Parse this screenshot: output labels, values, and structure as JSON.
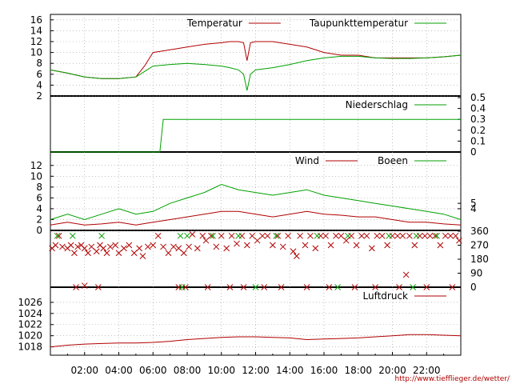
{
  "credit_url": "http://www.tiefflieger.de/wetter/",
  "x_axis": {
    "tick_labels": [
      "02:00",
      "04:00",
      "06:00",
      "08:00",
      "10:00",
      "12:00",
      "14:00",
      "16:00",
      "18:00",
      "20:00",
      "22:00"
    ],
    "range_hours": [
      0,
      24
    ]
  },
  "colors": {
    "red": "#b00000",
    "green": "#00a000",
    "grid": "#999999",
    "frame": "#000000"
  },
  "chart_data": [
    {
      "type": "line",
      "y_ticks": [
        2,
        4,
        6,
        8,
        10,
        12,
        14,
        16
      ],
      "ylim": [
        2,
        17
      ],
      "grid": true,
      "legend_position": "top-right",
      "x": [
        0,
        1,
        2,
        3,
        4,
        5,
        5.5,
        6,
        7,
        8,
        9,
        10,
        10.5,
        11,
        11.3,
        11.5,
        11.7,
        12,
        13,
        14,
        15,
        16,
        17,
        18,
        19,
        20,
        21,
        22,
        23,
        24
      ],
      "series": [
        {
          "name": "Temperatur",
          "color": "red",
          "values": [
            6.8,
            6.2,
            5.5,
            5.2,
            5.2,
            5.5,
            7.5,
            10.0,
            10.5,
            11.0,
            11.5,
            11.8,
            12.0,
            12.0,
            11.8,
            8.5,
            11.8,
            12.0,
            12.0,
            11.5,
            11.0,
            10.0,
            9.5,
            9.5,
            9.0,
            9.0,
            9.0,
            9.0,
            9.2,
            9.5
          ]
        },
        {
          "name": "Taupunkttemperatur",
          "color": "green",
          "values": [
            6.8,
            6.2,
            5.5,
            5.2,
            5.2,
            5.5,
            6.5,
            7.5,
            7.8,
            8.0,
            7.8,
            7.5,
            7.2,
            6.8,
            6.0,
            3.0,
            6.0,
            6.8,
            7.2,
            7.8,
            8.5,
            9.0,
            9.3,
            9.3,
            9.0,
            8.9,
            8.9,
            9.0,
            9.2,
            9.5
          ]
        }
      ]
    },
    {
      "type": "line",
      "y_ticks_right": [
        0,
        0.1,
        0.2,
        0.3,
        0.4,
        0.5
      ],
      "ylim": [
        0,
        0.5
      ],
      "legend_position": "top-right",
      "x": [
        0,
        6.4,
        6.4,
        6.6,
        24
      ],
      "series": [
        {
          "name": "Niederschlag",
          "color": "green",
          "values": [
            0,
            0,
            0,
            0.3,
            0.3
          ]
        }
      ]
    },
    {
      "type": "line",
      "y_ticks": [
        0,
        2,
        4,
        6,
        8,
        10,
        12
      ],
      "y_ticks_right": [
        4,
        5
      ],
      "ylim": [
        0,
        13
      ],
      "grid": true,
      "legend_position": "top-right",
      "x": [
        0,
        1,
        2,
        3,
        4,
        5,
        6,
        7,
        8,
        9,
        10,
        11,
        12,
        13,
        14,
        15,
        16,
        17,
        18,
        19,
        20,
        21,
        22,
        23,
        24
      ],
      "series": [
        {
          "name": "Wind",
          "color": "red",
          "values": [
            1.0,
            1.5,
            1.0,
            1.2,
            1.5,
            1.0,
            1.5,
            2.0,
            2.5,
            3.0,
            3.5,
            3.5,
            3.0,
            2.5,
            3.0,
            3.5,
            3.0,
            2.8,
            2.5,
            2.5,
            2.0,
            1.5,
            1.5,
            1.2,
            1.0
          ]
        },
        {
          "name": "Boeen",
          "color": "green",
          "values": [
            2.0,
            3.0,
            2.0,
            3.0,
            4.0,
            3.0,
            3.5,
            5.0,
            6.0,
            7.0,
            8.5,
            7.5,
            7.0,
            6.5,
            7.0,
            7.5,
            6.5,
            6.0,
            5.5,
            5.0,
            4.5,
            4.0,
            3.5,
            3.0,
            2.0
          ]
        }
      ]
    },
    {
      "type": "scatter",
      "y_ticks_right": [
        0,
        90,
        180,
        270,
        360
      ],
      "ylim": [
        0,
        360
      ],
      "series": [
        {
          "name": "Wind",
          "color": "red",
          "points": [
            [
              0.1,
              250
            ],
            [
              0.3,
              270
            ],
            [
              0.5,
              330
            ],
            [
              0.7,
              260
            ],
            [
              1.0,
              250
            ],
            [
              1.2,
              270
            ],
            [
              1.4,
              220
            ],
            [
              1.6,
              260
            ],
            [
              1.8,
              270
            ],
            [
              2.0,
              250
            ],
            [
              2.2,
              220
            ],
            [
              2.4,
              260
            ],
            [
              2.7,
              230
            ],
            [
              2.9,
              270
            ],
            [
              3.1,
              250
            ],
            [
              3.3,
              220
            ],
            [
              3.5,
              260
            ],
            [
              3.8,
              270
            ],
            [
              4.0,
              220
            ],
            [
              4.3,
              250
            ],
            [
              4.6,
              270
            ],
            [
              4.9,
              220
            ],
            [
              5.2,
              250
            ],
            [
              5.4,
              200
            ],
            [
              5.7,
              260
            ],
            [
              6.0,
              270
            ],
            [
              6.3,
              330
            ],
            [
              6.6,
              260
            ],
            [
              6.9,
              220
            ],
            [
              7.2,
              260
            ],
            [
              7.5,
              250
            ],
            [
              7.8,
              220
            ],
            [
              8.1,
              260
            ],
            [
              8.3,
              340
            ],
            [
              8.6,
              250
            ],
            [
              8.9,
              330
            ],
            [
              9.1,
              300
            ],
            [
              9.4,
              330
            ],
            [
              9.7,
              260
            ],
            [
              10.0,
              330
            ],
            [
              10.3,
              250
            ],
            [
              10.6,
              330
            ],
            [
              10.9,
              280
            ],
            [
              11.2,
              330
            ],
            [
              11.5,
              270
            ],
            [
              11.8,
              330
            ],
            [
              12.1,
              300
            ],
            [
              12.4,
              330
            ],
            [
              12.7,
              330
            ],
            [
              13.0,
              270
            ],
            [
              13.3,
              330
            ],
            [
              13.6,
              260
            ],
            [
              13.9,
              330
            ],
            [
              14.2,
              230
            ],
            [
              14.4,
              200
            ],
            [
              14.6,
              330
            ],
            [
              14.9,
              270
            ],
            [
              15.2,
              330
            ],
            [
              15.5,
              250
            ],
            [
              15.8,
              330
            ],
            [
              16.1,
              330
            ],
            [
              16.4,
              270
            ],
            [
              16.7,
              330
            ],
            [
              17.0,
              330
            ],
            [
              17.3,
              300
            ],
            [
              17.6,
              330
            ],
            [
              17.9,
              270
            ],
            [
              18.2,
              330
            ],
            [
              18.5,
              330
            ],
            [
              18.8,
              250
            ],
            [
              19.1,
              330
            ],
            [
              19.4,
              330
            ],
            [
              19.7,
              270
            ],
            [
              20.0,
              330
            ],
            [
              20.3,
              330
            ],
            [
              20.6,
              330
            ],
            [
              20.8,
              80
            ],
            [
              21.0,
              330
            ],
            [
              21.3,
              270
            ],
            [
              21.6,
              330
            ],
            [
              21.9,
              330
            ],
            [
              22.2,
              330
            ],
            [
              22.5,
              330
            ],
            [
              22.8,
              270
            ],
            [
              23.1,
              330
            ],
            [
              23.4,
              330
            ],
            [
              23.7,
              330
            ],
            [
              23.9,
              300
            ],
            [
              1.5,
              0
            ],
            [
              2.0,
              10
            ],
            [
              2.8,
              0
            ],
            [
              7.5,
              0
            ],
            [
              7.9,
              0
            ],
            [
              9.2,
              0
            ],
            [
              10.5,
              0
            ],
            [
              11.3,
              0
            ],
            [
              12.5,
              0
            ],
            [
              13.5,
              0
            ],
            [
              15.0,
              0
            ],
            [
              16.3,
              0
            ],
            [
              17.8,
              0
            ],
            [
              19.0,
              0
            ],
            [
              20.4,
              0
            ],
            [
              22.0,
              0
            ],
            [
              23.5,
              0
            ]
          ]
        },
        {
          "name": "Boeen",
          "color": "green",
          "points": [
            [
              0.4,
              330
            ],
            [
              1.3,
              330
            ],
            [
              3.0,
              330
            ],
            [
              7.6,
              330
            ],
            [
              8.0,
              330
            ],
            [
              9.5,
              330
            ],
            [
              11.0,
              330
            ],
            [
              13.2,
              330
            ],
            [
              15.6,
              330
            ],
            [
              17.4,
              330
            ],
            [
              19.8,
              330
            ],
            [
              21.4,
              330
            ],
            [
              22.6,
              330
            ],
            [
              7.7,
              0
            ],
            [
              12.0,
              0
            ],
            [
              16.8,
              0
            ],
            [
              21.2,
              0
            ]
          ]
        }
      ]
    },
    {
      "type": "line",
      "y_ticks": [
        1018,
        1020,
        1022,
        1024,
        1026
      ],
      "ylim": [
        1016.5,
        1028
      ],
      "grid": true,
      "legend_position": "top-right",
      "x": [
        0,
        1,
        2,
        3,
        4,
        5,
        6,
        7,
        8,
        9,
        10,
        11,
        12,
        13,
        14,
        15,
        16,
        17,
        18,
        19,
        20,
        21,
        22,
        23,
        24
      ],
      "series": [
        {
          "name": "Luftdruck",
          "color": "red",
          "values": [
            1018.0,
            1018.3,
            1018.5,
            1018.6,
            1018.7,
            1018.7,
            1018.8,
            1019.0,
            1019.3,
            1019.5,
            1019.7,
            1019.8,
            1019.8,
            1019.7,
            1019.6,
            1019.3,
            1019.4,
            1019.5,
            1019.6,
            1019.8,
            1020.0,
            1020.2,
            1020.2,
            1020.1,
            1020.0
          ]
        }
      ]
    }
  ]
}
